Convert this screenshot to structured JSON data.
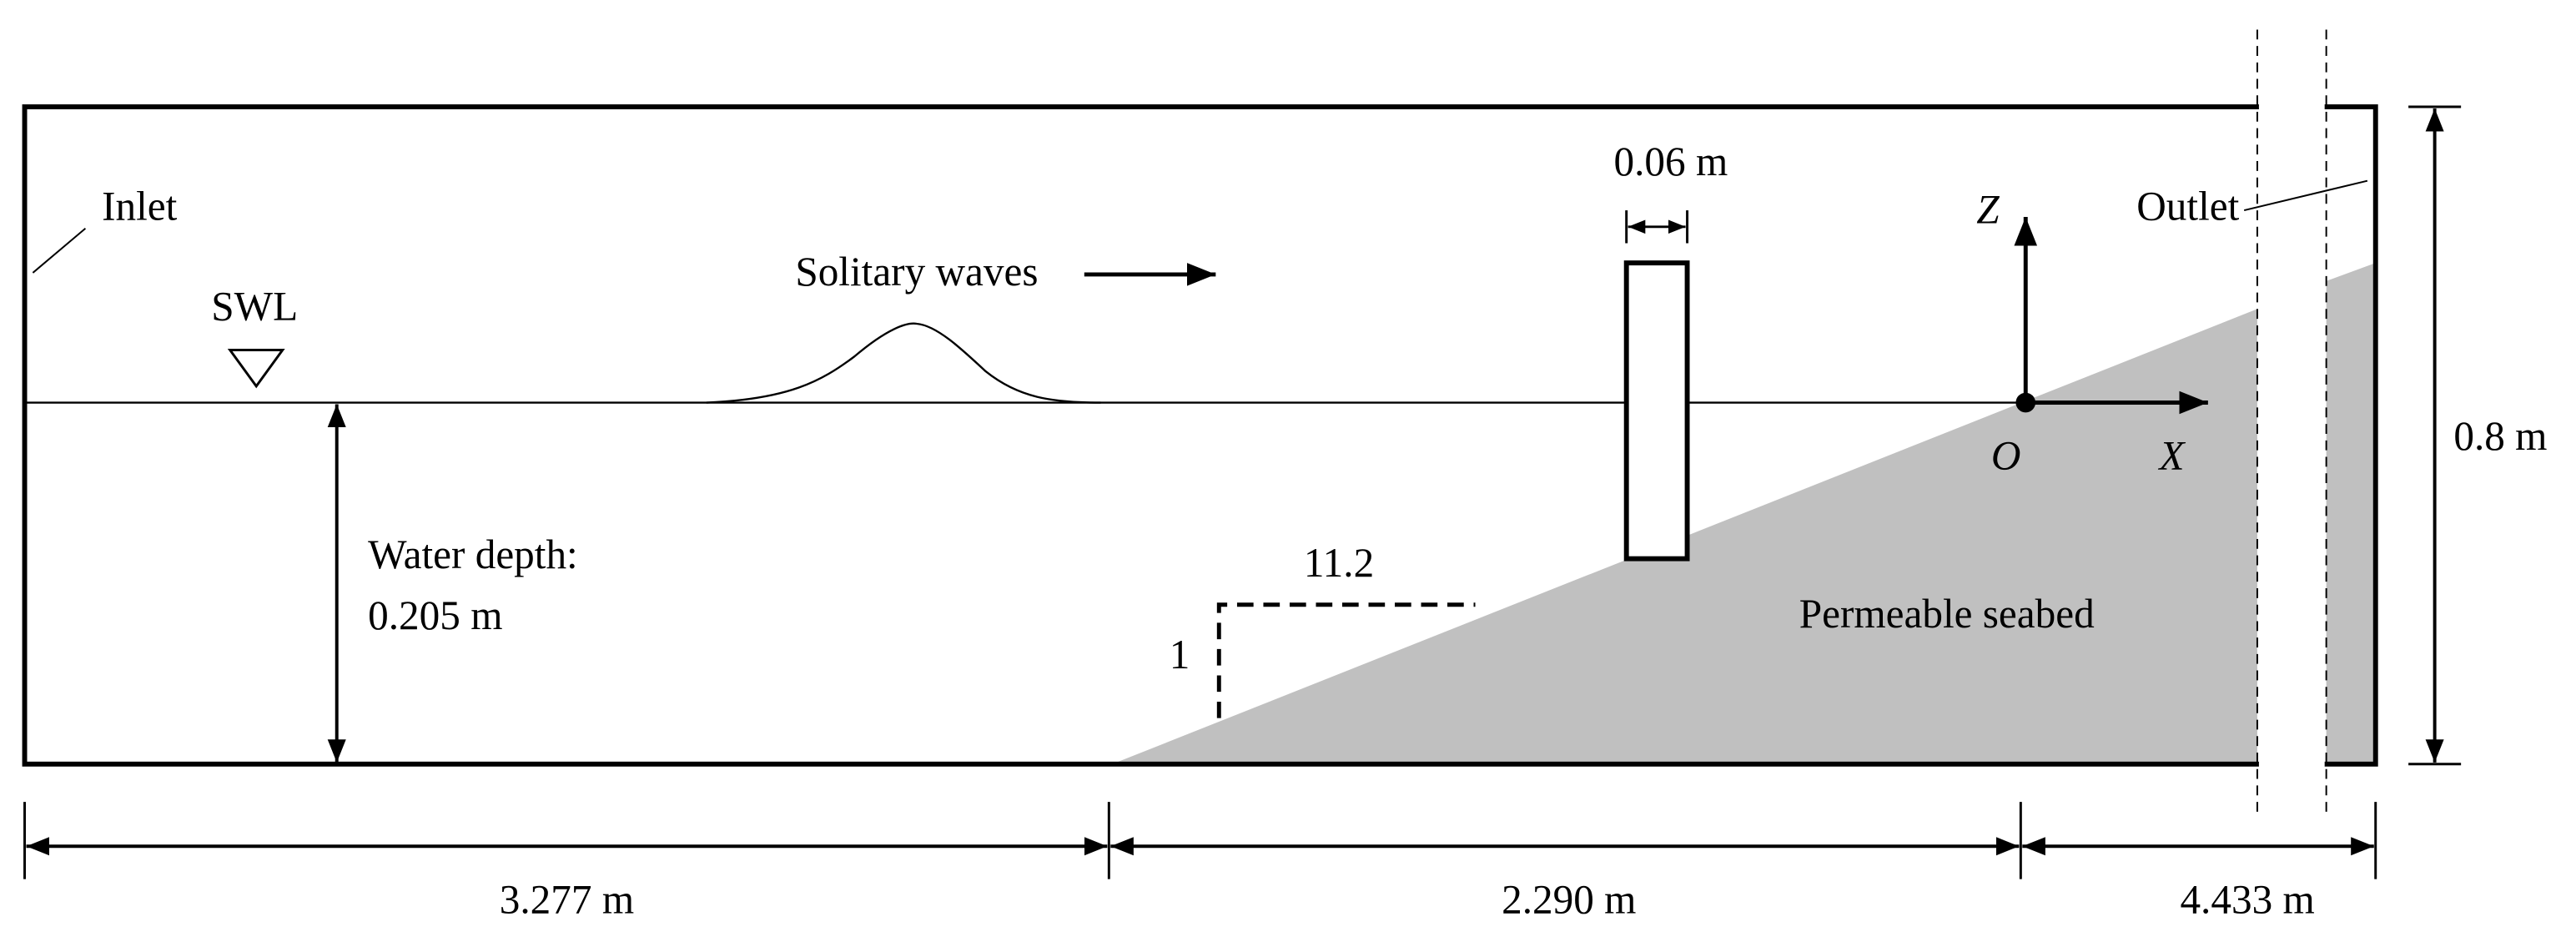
{
  "labels": {
    "inlet": "Inlet",
    "swl": "SWL",
    "solitary_waves": "Solitary waves",
    "pile_width": "0.06 m",
    "z_axis": "Z",
    "outlet": "Outlet",
    "origin": "O",
    "x_axis": "X",
    "tank_height": "0.8 m",
    "water_depth_label": "Water depth:",
    "water_depth_value": "0.205 m",
    "slope_run": "11.2",
    "slope_rise": "1",
    "seabed": "Permeable seabed",
    "length_flat": "3.277 m",
    "length_slope": "2.290 m",
    "length_rest": "4.433 m"
  }
}
